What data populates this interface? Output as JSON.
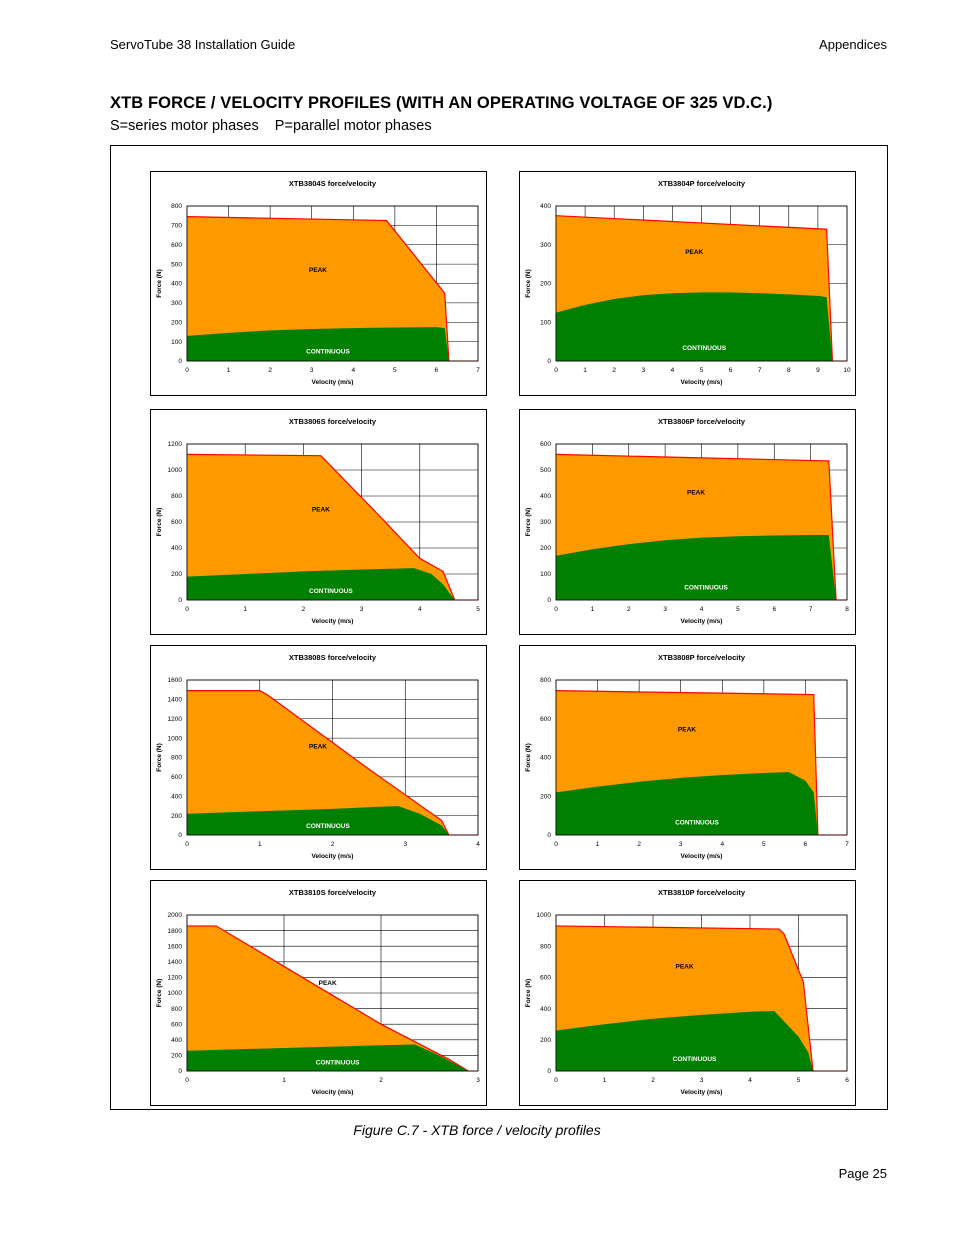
{
  "header": {
    "left": "ServoTube 38 Installation Guide",
    "right": "Appendices"
  },
  "heading": "XTB FORCE / VELOCITY PROFILES (WITH AN OPERATING VOLTAGE OF 325 VD.C.)",
  "subheading": "S=series motor phases    P=parallel motor phases",
  "caption": "Figure C.7 - XTB force / velocity profiles",
  "footer": {
    "page": "Page 25"
  },
  "colors": {
    "peak": "#FF9900",
    "continuous": "#008000",
    "peak_line": "#FF0000"
  },
  "chart_data": [
    {
      "type": "area",
      "title": "XTB3804S force/velocity",
      "xlabel": "Velocity (m/s)",
      "ylabel": "Force (N)",
      "xlim": [
        0,
        7
      ],
      "ylim": [
        0,
        800
      ],
      "xticks": [
        0,
        1,
        2,
        3,
        4,
        5,
        6,
        7
      ],
      "yticks": [
        0,
        100,
        200,
        300,
        400,
        500,
        600,
        700,
        800
      ],
      "series": [
        {
          "name": "PEAK",
          "x": [
            0,
            4.8,
            6.2,
            6.3
          ],
          "y": [
            745,
            725,
            350,
            0
          ]
        },
        {
          "name": "CONTINUOUS",
          "x": [
            0,
            1,
            2,
            3,
            4,
            5,
            6,
            6.2,
            6.3
          ],
          "y": [
            130,
            145,
            158,
            165,
            170,
            173,
            175,
            170,
            0
          ]
        }
      ],
      "labels": {
        "peak": "PEAK",
        "continuous": "CONTINUOUS"
      }
    },
    {
      "type": "area",
      "title": "XTB3804P force/velocity",
      "xlabel": "Velocity (m/s)",
      "ylabel": "Force (N)",
      "xlim": [
        0,
        10
      ],
      "ylim": [
        0,
        400
      ],
      "xticks": [
        0,
        1,
        2,
        3,
        4,
        5,
        6,
        7,
        8,
        9,
        10
      ],
      "yticks": [
        0,
        100,
        200,
        300,
        400
      ],
      "series": [
        {
          "name": "PEAK",
          "x": [
            0,
            9.3,
            9.5
          ],
          "y": [
            375,
            340,
            0
          ]
        },
        {
          "name": "CONTINUOUS",
          "x": [
            0,
            1,
            2,
            3,
            4,
            5,
            6,
            7,
            8,
            9,
            9.3,
            9.5
          ],
          "y": [
            125,
            145,
            160,
            170,
            175,
            177,
            177,
            175,
            172,
            168,
            165,
            0
          ]
        }
      ],
      "labels": {
        "peak": "PEAK",
        "continuous": "CONTINUOUS"
      }
    },
    {
      "type": "area",
      "title": "XTB3806S force/velocity",
      "xlabel": "Velocity (m/s)",
      "ylabel": "Force (N)",
      "xlim": [
        0,
        5
      ],
      "ylim": [
        0,
        1200
      ],
      "xticks": [
        0,
        1,
        2,
        3,
        4,
        5
      ],
      "yticks": [
        0,
        200,
        400,
        600,
        800,
        1000,
        1200
      ],
      "series": [
        {
          "name": "PEAK",
          "x": [
            0,
            2.3,
            3.3,
            4.0,
            4.4,
            4.6
          ],
          "y": [
            1120,
            1110,
            650,
            320,
            220,
            0
          ]
        },
        {
          "name": "CONTINUOUS",
          "x": [
            0,
            1,
            2,
            3,
            3.9,
            4.2,
            4.4,
            4.6
          ],
          "y": [
            180,
            200,
            220,
            235,
            245,
            200,
            120,
            0
          ]
        }
      ],
      "labels": {
        "peak": "PEAK",
        "continuous": "CONTINUOUS"
      }
    },
    {
      "type": "area",
      "title": "XTB3806P force/velocity",
      "xlabel": "Velocity (m/s)",
      "ylabel": "Force (N)",
      "xlim": [
        0,
        8
      ],
      "ylim": [
        0,
        600
      ],
      "xticks": [
        0,
        1,
        2,
        3,
        4,
        5,
        6,
        7,
        8
      ],
      "yticks": [
        0,
        100,
        200,
        300,
        400,
        500,
        600
      ],
      "series": [
        {
          "name": "PEAK",
          "x": [
            0,
            7.5,
            7.7
          ],
          "y": [
            560,
            535,
            0
          ]
        },
        {
          "name": "CONTINUOUS",
          "x": [
            0,
            1,
            2,
            3,
            4,
            5,
            6,
            7,
            7.5,
            7.7
          ],
          "y": [
            170,
            195,
            215,
            230,
            240,
            245,
            248,
            250,
            250,
            0
          ]
        }
      ],
      "labels": {
        "peak": "PEAK",
        "continuous": "CONTINUOUS"
      }
    },
    {
      "type": "area",
      "title": "XTB3808S force/velocity",
      "xlabel": "Velocity (m/s)",
      "ylabel": "Force (N)",
      "xlim": [
        0,
        4
      ],
      "ylim": [
        0,
        1600
      ],
      "xticks": [
        0,
        1,
        2,
        3,
        4
      ],
      "yticks": [
        0,
        200,
        400,
        600,
        800,
        1000,
        1200,
        1400,
        1600
      ],
      "series": [
        {
          "name": "PEAK",
          "x": [
            0,
            1.0,
            1.1,
            2.5,
            3.5,
            3.6
          ],
          "y": [
            1490,
            1490,
            1450,
            680,
            150,
            0
          ]
        },
        {
          "name": "CONTINUOUS",
          "x": [
            0,
            1,
            2,
            2.9,
            3.2,
            3.5,
            3.6
          ],
          "y": [
            220,
            245,
            270,
            300,
            220,
            100,
            0
          ]
        }
      ],
      "labels": {
        "peak": "PEAK",
        "continuous": "CONTINUOUS"
      }
    },
    {
      "type": "area",
      "title": "XTB3808P force/velocity",
      "xlabel": "Velocity (m/s)",
      "ylabel": "Force (N)",
      "xlim": [
        0,
        7
      ],
      "ylim": [
        0,
        800
      ],
      "xticks": [
        0,
        1,
        2,
        3,
        4,
        5,
        6,
        7
      ],
      "yticks": [
        0,
        200,
        400,
        600,
        800
      ],
      "series": [
        {
          "name": "PEAK",
          "x": [
            0,
            6.2,
            6.3
          ],
          "y": [
            745,
            725,
            0
          ]
        },
        {
          "name": "CONTINUOUS",
          "x": [
            0,
            1,
            2,
            3,
            4,
            5,
            5.6,
            6.0,
            6.2,
            6.3
          ],
          "y": [
            220,
            250,
            275,
            295,
            310,
            320,
            325,
            280,
            220,
            0
          ]
        }
      ],
      "labels": {
        "peak": "PEAK",
        "continuous": "CONTINUOUS"
      }
    },
    {
      "type": "area",
      "title": "XTB3810S force/velocity",
      "xlabel": "Velocity (m/s)",
      "ylabel": "Force (N)",
      "xlim": [
        0,
        3
      ],
      "ylim": [
        0,
        2000
      ],
      "xticks": [
        0,
        1,
        2,
        3
      ],
      "yticks": [
        0,
        200,
        400,
        600,
        800,
        1000,
        1200,
        1400,
        1600,
        1800,
        2000
      ],
      "series": [
        {
          "name": "PEAK",
          "x": [
            0,
            0.3,
            2.0,
            2.7,
            2.9
          ],
          "y": [
            1860,
            1860,
            600,
            150,
            0
          ]
        },
        {
          "name": "CONTINUOUS",
          "x": [
            0,
            1,
            2,
            2.35,
            2.6,
            2.9
          ],
          "y": [
            260,
            295,
            330,
            340,
            200,
            0
          ]
        }
      ],
      "labels": {
        "peak": "PEAK",
        "continuous": "CONTINUOUS"
      }
    },
    {
      "type": "area",
      "title": "XTB3810P force/velocity",
      "xlabel": "Velocity (m/s)",
      "ylabel": "Force (N)",
      "xlim": [
        0,
        6
      ],
      "ylim": [
        0,
        1000
      ],
      "xticks": [
        0,
        1,
        2,
        3,
        4,
        5,
        6
      ],
      "yticks": [
        0,
        200,
        400,
        600,
        800,
        1000
      ],
      "series": [
        {
          "name": "PEAK",
          "x": [
            0,
            4.6,
            4.7,
            5.1,
            5.3
          ],
          "y": [
            930,
            910,
            880,
            570,
            0
          ]
        },
        {
          "name": "CONTINUOUS",
          "x": [
            0,
            1,
            2,
            3,
            4,
            4.5,
            5.0,
            5.2,
            5.3
          ],
          "y": [
            260,
            300,
            335,
            360,
            380,
            385,
            220,
            120,
            0
          ]
        }
      ],
      "labels": {
        "peak": "PEAK",
        "continuous": "CONTINUOUS"
      }
    }
  ]
}
